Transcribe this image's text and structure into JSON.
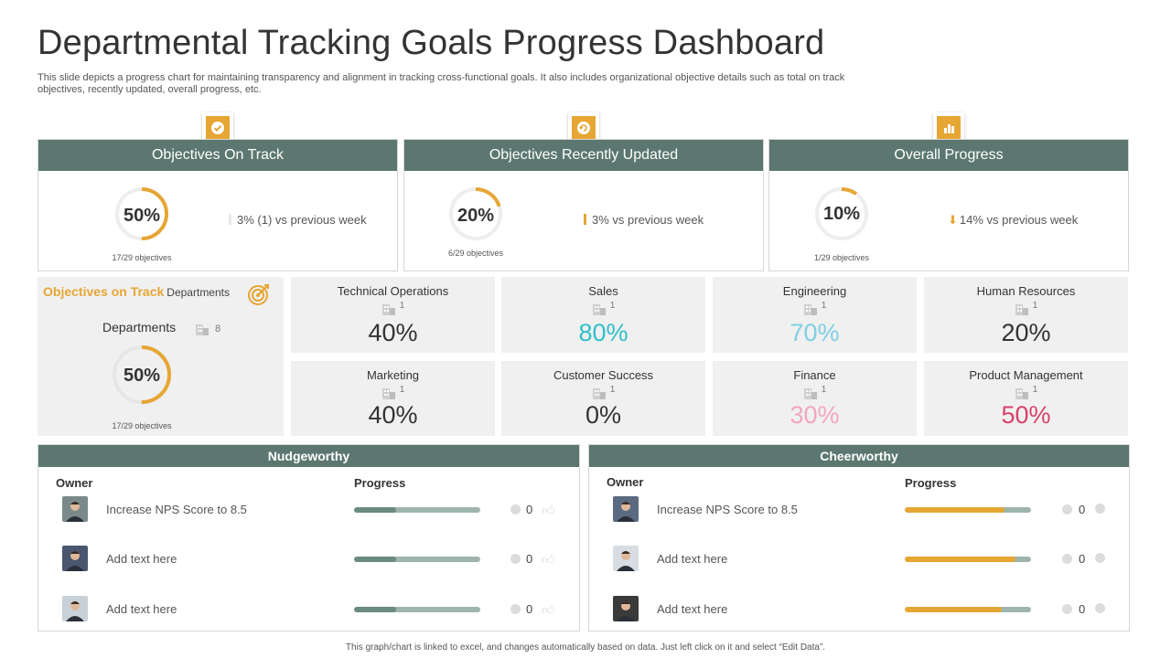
{
  "title": "Departmental Tracking Goals Progress Dashboard",
  "subtitle": "This slide depicts a progress chart for maintaining transparency and alignment in tracking cross-functional goals. It also includes organizational objective details such as total on track objectives, recently updated, overall progress, etc.",
  "colors": {
    "header": "#5b7770",
    "accent": "#e6a633",
    "tile_bg": "#f0f0f0"
  },
  "cards": [
    {
      "icon": "check-circle-icon",
      "title": "Objectives On Track",
      "percent": "50%",
      "progress": 0.5,
      "objectives": "17/29 objectives",
      "delta": "3% (1) vs previous  week",
      "delta_color": "#e8e8e8"
    },
    {
      "icon": "refresh-icon",
      "title": "Objectives Recently Updated",
      "percent": "20%",
      "progress": 0.2,
      "objectives": "6/29 objectives",
      "delta": "3% vs previous  week",
      "delta_color": "#e6a633"
    },
    {
      "icon": "bar-chart-icon",
      "title": "Overall Progress",
      "percent": "10%",
      "progress": 0.1,
      "objectives": "1/29 objectives",
      "delta": "14% vs previous  week",
      "delta_color": "#e6a633",
      "delta_icon": "arrow-down-icon"
    }
  ],
  "departments_panel": {
    "heading": "Objectives on Track",
    "heading_suffix": "Departments",
    "label": "Departments",
    "count": "8",
    "percent": "50%",
    "progress": 0.5,
    "objectives": "17/29 objectives"
  },
  "tiles": [
    {
      "name": "Technical Operations",
      "count": "1",
      "value": "40%",
      "color": "#333333"
    },
    {
      "name": "Sales",
      "count": "1",
      "value": "80%",
      "color": "#2fbfc9"
    },
    {
      "name": "Engineering",
      "count": "1",
      "value": "70%",
      "color": "#7fcfe3"
    },
    {
      "name": "Human Resources",
      "count": "1",
      "value": "20%",
      "color": "#333333"
    },
    {
      "name": "Marketing",
      "count": "1",
      "value": "40%",
      "color": "#333333"
    },
    {
      "name": "Customer Success",
      "count": "1",
      "value": "0%",
      "color": "#333333"
    },
    {
      "name": "Finance",
      "count": "1",
      "value": "30%",
      "color": "#f2a6bd"
    },
    {
      "name": "Product Management",
      "count": "1",
      "value": "50%",
      "color": "#d9416b"
    }
  ],
  "nudgeworthy": {
    "title": "Nudgeworthy",
    "owner_label": "Owner",
    "progress_label": "Progress",
    "rows": [
      {
        "text": "Increase NPS Score to 8.5",
        "progress": 0.33,
        "count": "0"
      },
      {
        "text": "Add text here",
        "progress": 0.33,
        "count": "0"
      },
      {
        "text": "Add text here",
        "progress": 0.33,
        "count": "0"
      }
    ]
  },
  "cheerworthy": {
    "title": "Cheerworthy",
    "owner_label": "Owner",
    "progress_label": "Progress",
    "rows": [
      {
        "text": "Increase NPS Score to 8.5",
        "progress": 0.79,
        "count": "0"
      },
      {
        "text": "Add text here",
        "progress": 0.88,
        "count": "0"
      },
      {
        "text": "Add text here",
        "progress": 0.77,
        "count": "0"
      }
    ]
  },
  "footer": "This graph/chart is linked to excel, and changes automatically based on data. Just left click on it and select “Edit Data”."
}
